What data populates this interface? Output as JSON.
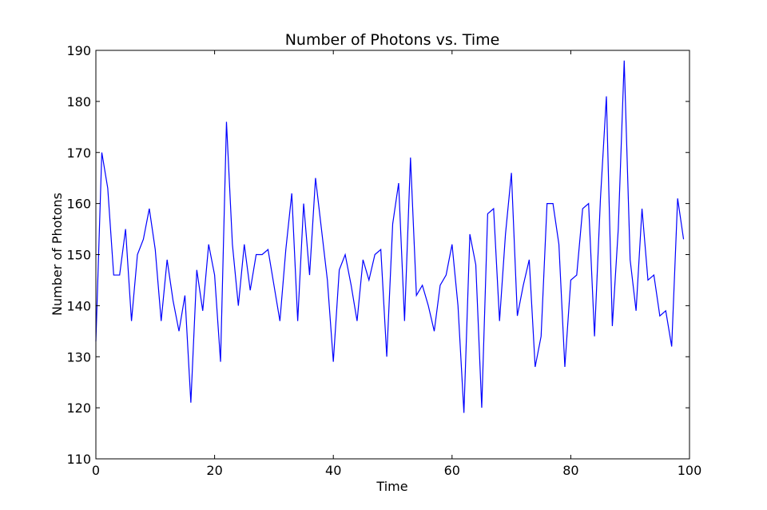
{
  "chart_data": {
    "type": "line",
    "title": "Number of Photons vs. Time",
    "xlabel": "Time",
    "ylabel": "Number of Photons",
    "xlim": [
      0,
      100
    ],
    "ylim": [
      110,
      190
    ],
    "xticks": [
      0,
      20,
      40,
      60,
      80,
      100
    ],
    "yticks": [
      110,
      120,
      130,
      140,
      150,
      160,
      170,
      180,
      190
    ],
    "grid": false,
    "line_color": "#0000ff",
    "series": [
      {
        "x": [
          0,
          1,
          2,
          3,
          4,
          5,
          6,
          7,
          8,
          9,
          10,
          11,
          12,
          13,
          14,
          15,
          16,
          17,
          18,
          19,
          20,
          21,
          22,
          23,
          24,
          25,
          26,
          27,
          28,
          29,
          30,
          31,
          32,
          33,
          34,
          35,
          36,
          37,
          38,
          39,
          40,
          41,
          42,
          43,
          44,
          45,
          46,
          47,
          48,
          49,
          50,
          51,
          52,
          53,
          54,
          55,
          56,
          57,
          58,
          59,
          60,
          61,
          62,
          63,
          64,
          65,
          66,
          67,
          68,
          69,
          70,
          71,
          72,
          73,
          74,
          75,
          76,
          77,
          78,
          79,
          80,
          81,
          82,
          83,
          84,
          85,
          86,
          87,
          88,
          89,
          90,
          91,
          92,
          93,
          94,
          95,
          96,
          97,
          98,
          99
        ],
        "values": [
          133,
          170,
          163,
          146,
          146,
          155,
          137,
          150,
          153,
          159,
          151,
          137,
          149,
          141,
          135,
          142,
          121,
          147,
          139,
          152,
          146,
          129,
          176,
          152,
          140,
          152,
          143,
          150,
          150,
          151,
          144,
          137,
          151,
          162,
          137,
          160,
          146,
          165,
          155,
          145,
          129,
          147,
          150,
          144,
          137,
          149,
          145,
          150,
          151,
          130,
          156,
          164,
          137,
          169,
          142,
          144,
          140,
          135,
          144,
          146,
          152,
          140,
          119,
          154,
          148,
          120,
          158,
          159,
          137,
          154,
          166,
          138,
          144,
          149,
          128,
          134,
          160,
          160,
          152,
          128,
          145,
          146,
          159,
          160,
          134,
          161,
          181,
          136,
          155,
          188,
          149,
          139,
          159,
          145,
          146,
          138,
          139,
          132,
          161,
          153
        ]
      }
    ]
  }
}
